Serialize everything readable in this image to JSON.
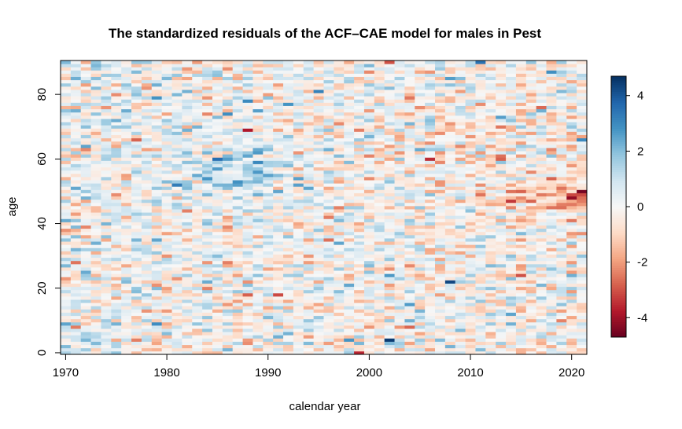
{
  "chart_data": {
    "type": "heatmap",
    "title": "The standardized residuals of the ACF–CAE model for males in Pest",
    "xlabel": "calendar year",
    "ylabel": "age",
    "x_range": [
      1970,
      2021
    ],
    "y_range": [
      0,
      90
    ],
    "xlim": [
      1969.5,
      2021.5
    ],
    "ylim": [
      -0.5,
      90.5
    ],
    "x_ticks": [
      "1970",
      "1980",
      "1990",
      "2000",
      "2010",
      "2020"
    ],
    "y_ticks": [
      "0",
      "20",
      "40",
      "60",
      "80"
    ],
    "colorbar": {
      "range": [
        -4.7,
        4.7
      ],
      "ticks": [
        "-4",
        "-2",
        "0",
        "2",
        "4"
      ],
      "palette": [
        "#67001f",
        "#b2182b",
        "#d6604d",
        "#f4a582",
        "#fddbc7",
        "#f7f7f7",
        "#d1e5f0",
        "#92c5de",
        "#4393c3",
        "#2166ac",
        "#053061"
      ]
    },
    "grid": false,
    "legend": "right",
    "note_on_values": "Residual cells are stochastic; values are approximated by a deterministic pattern reproducing the visual texture (per-cell noise, stronger positive residuals around ages 50-65 in 1980s, negative band around ages 45-50 after 2012).",
    "highlights": [
      {
        "year": 2021,
        "age": 50,
        "value": -4.5
      },
      {
        "year": 2021,
        "age": 66,
        "value": 3.0
      },
      {
        "year": 2008,
        "age": 22,
        "value": 4.3
      },
      {
        "year": 2002,
        "age": 4,
        "value": 4.5
      },
      {
        "year": 1985,
        "age": 60,
        "value": 3.6
      },
      {
        "year": 1988,
        "age": 69,
        "value": -3.8
      },
      {
        "year": 2011,
        "age": 90,
        "value": 3.5
      },
      {
        "year": 2002,
        "age": 90,
        "value": -3.0
      },
      {
        "year": 1995,
        "age": 81,
        "value": 3.2
      },
      {
        "year": 1981,
        "age": 52,
        "value": 3.3
      },
      {
        "year": 2006,
        "age": 60,
        "value": -3.5
      },
      {
        "year": 1999,
        "age": 0,
        "value": -3.6
      }
    ]
  }
}
